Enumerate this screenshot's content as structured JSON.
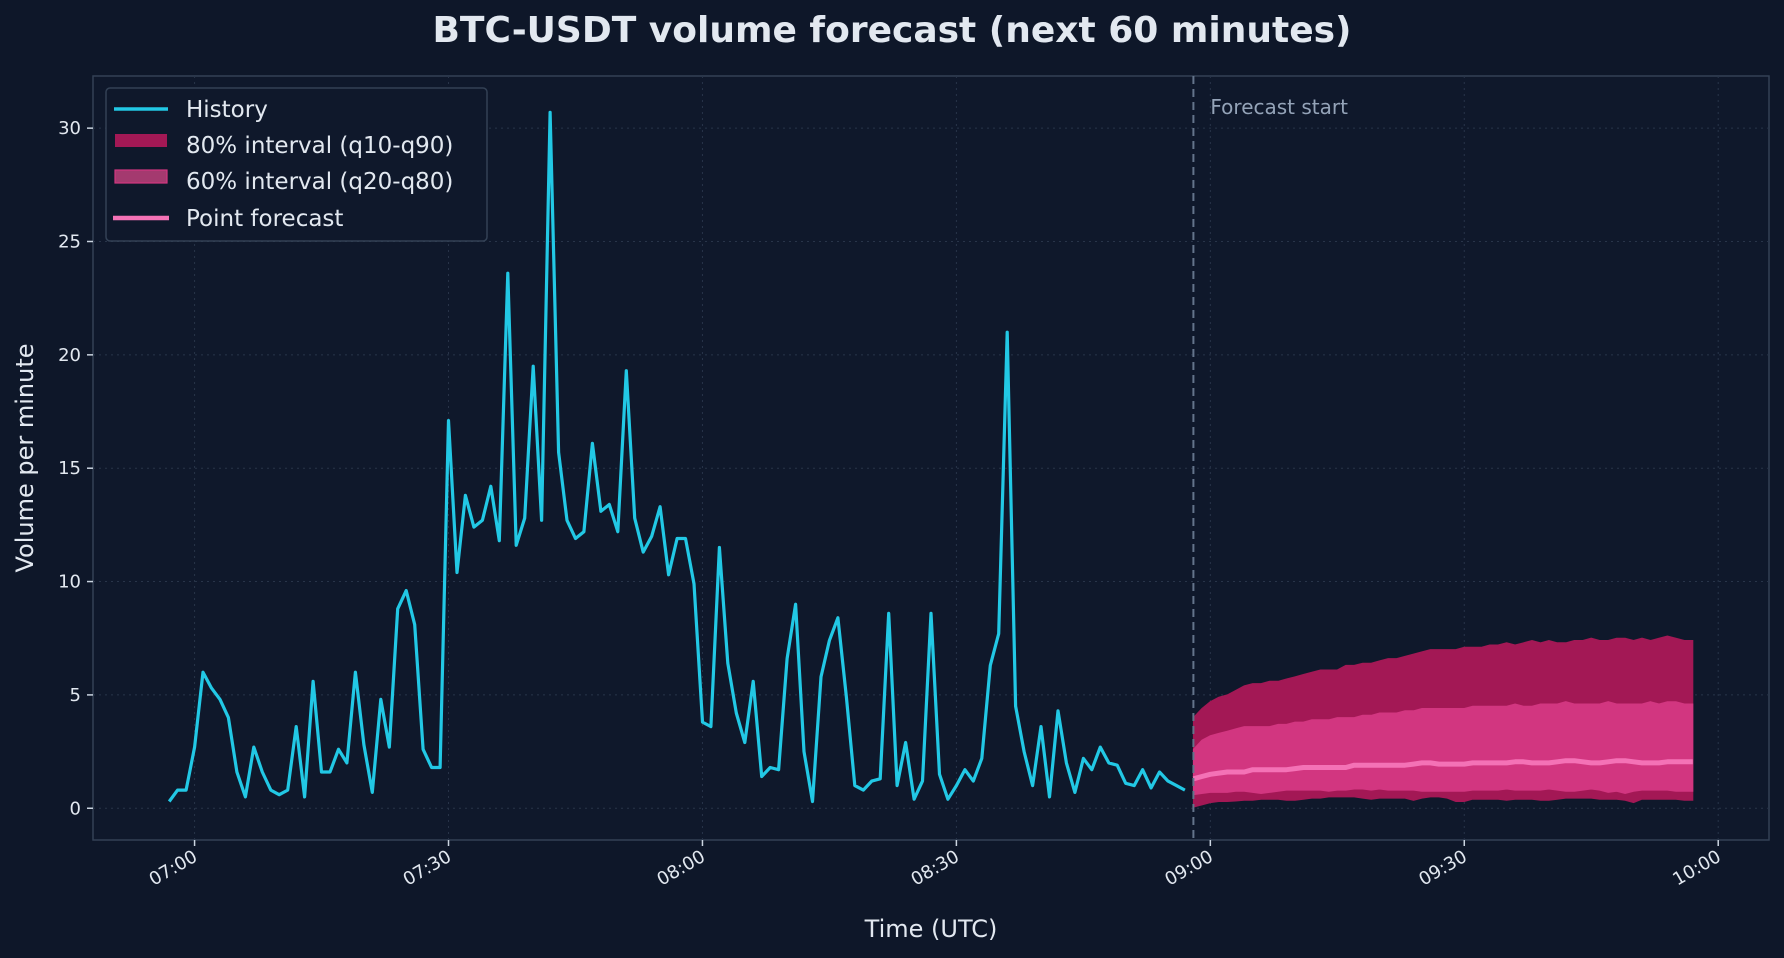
{
  "colors": {
    "background": "#0e1729",
    "axes_background": "#0f182b",
    "spine": "#334155",
    "grid": "#283449",
    "text": "#e2e8f0",
    "history": "#22c8e5",
    "interval80": "#a31855",
    "interval60": "#d23680",
    "point": "#f472b6",
    "forecast_line": "#64748b",
    "annotation": "#94a3b8"
  },
  "chart_data": {
    "type": "line",
    "title": "BTC-USDT volume forecast (next 60 minutes)",
    "xlabel": "Time (UTC)",
    "ylabel": "Volume per minute",
    "xlim": [
      "06:48",
      "10:06"
    ],
    "ylim": [
      -1.4,
      32.3
    ],
    "x_ticks": [
      "07:00",
      "07:30",
      "08:00",
      "08:30",
      "09:00",
      "09:30",
      "10:00"
    ],
    "y_ticks": [
      0,
      5,
      10,
      15,
      20,
      25,
      30
    ],
    "grid": true,
    "legend": {
      "placement": "upper-left",
      "entries": [
        "History",
        "80% interval (q10-q90)",
        "60% interval (q20-q80)",
        "Point forecast"
      ]
    },
    "annotation": {
      "text": "Forecast start",
      "x": "08:58"
    },
    "history": {
      "name": "History",
      "x": [
        "06:57",
        "06:58",
        "06:59",
        "07:00",
        "07:01",
        "07:02",
        "07:03",
        "07:04",
        "07:05",
        "07:06",
        "07:07",
        "07:08",
        "07:09",
        "07:10",
        "07:11",
        "07:12",
        "07:13",
        "07:14",
        "07:15",
        "07:16",
        "07:17",
        "07:18",
        "07:19",
        "07:20",
        "07:21",
        "07:22",
        "07:23",
        "07:24",
        "07:25",
        "07:26",
        "07:27",
        "07:28",
        "07:29",
        "07:30",
        "07:31",
        "07:32",
        "07:33",
        "07:34",
        "07:35",
        "07:36",
        "07:37",
        "07:38",
        "07:39",
        "07:40",
        "07:41",
        "07:42",
        "07:43",
        "07:44",
        "07:45",
        "07:46",
        "07:47",
        "07:48",
        "07:49",
        "07:50",
        "07:51",
        "07:52",
        "07:53",
        "07:54",
        "07:55",
        "07:56",
        "07:57",
        "07:58",
        "07:59",
        "08:00",
        "08:01",
        "08:02",
        "08:03",
        "08:04",
        "08:05",
        "08:06",
        "08:07",
        "08:08",
        "08:09",
        "08:10",
        "08:11",
        "08:12",
        "08:13",
        "08:14",
        "08:15",
        "08:16",
        "08:17",
        "08:18",
        "08:19",
        "08:20",
        "08:21",
        "08:22",
        "08:23",
        "08:24",
        "08:25",
        "08:26",
        "08:27",
        "08:28",
        "08:29",
        "08:30",
        "08:31",
        "08:32",
        "08:33",
        "08:34",
        "08:35",
        "08:36",
        "08:37",
        "08:38",
        "08:39",
        "08:40",
        "08:41",
        "08:42",
        "08:43",
        "08:44",
        "08:45",
        "08:46",
        "08:47",
        "08:48",
        "08:49",
        "08:50",
        "08:51",
        "08:52",
        "08:53",
        "08:54",
        "08:55",
        "08:56",
        "08:57"
      ],
      "y": [
        0.3,
        0.8,
        0.8,
        2.7,
        6.0,
        5.3,
        4.8,
        4.0,
        1.6,
        0.5,
        2.7,
        1.6,
        0.8,
        0.6,
        0.8,
        3.6,
        0.5,
        5.6,
        1.6,
        1.6,
        2.6,
        2.0,
        6.0,
        2.8,
        0.7,
        4.8,
        2.7,
        8.8,
        9.6,
        8.1,
        2.6,
        1.8,
        1.8,
        17.1,
        10.4,
        13.8,
        12.4,
        12.7,
        14.2,
        11.8,
        23.6,
        11.6,
        12.8,
        19.5,
        12.7,
        30.7,
        15.7,
        12.7,
        11.9,
        12.2,
        16.1,
        13.1,
        13.4,
        12.2,
        19.3,
        12.8,
        11.3,
        12.0,
        13.3,
        10.3,
        11.9,
        11.9,
        9.9,
        3.8,
        3.6,
        11.5,
        6.4,
        4.2,
        2.9,
        5.6,
        1.4,
        1.8,
        1.7,
        6.6,
        9.0,
        2.5,
        0.3,
        5.8,
        7.4,
        8.4,
        4.9,
        1.0,
        0.8,
        1.2,
        1.3,
        8.6,
        1.0,
        2.9,
        0.4,
        1.2,
        8.6,
        1.5,
        0.4,
        1.0,
        1.7,
        1.2,
        2.2,
        6.3,
        7.7,
        21.0,
        4.5,
        2.5,
        1.0,
        3.6,
        0.5,
        4.3,
        2.0,
        0.7,
        2.2,
        1.7,
        2.7,
        2.0,
        1.9,
        1.1,
        1.0,
        1.7,
        0.9,
        1.6,
        1.2,
        1.0,
        0.8
      ]
    },
    "forecast": {
      "x": [
        "08:58",
        "08:59",
        "09:00",
        "09:01",
        "09:02",
        "09:03",
        "09:04",
        "09:05",
        "09:06",
        "09:07",
        "09:08",
        "09:09",
        "09:10",
        "09:11",
        "09:12",
        "09:13",
        "09:14",
        "09:15",
        "09:16",
        "09:17",
        "09:18",
        "09:19",
        "09:20",
        "09:21",
        "09:22",
        "09:23",
        "09:24",
        "09:25",
        "09:26",
        "09:27",
        "09:28",
        "09:29",
        "09:30",
        "09:31",
        "09:32",
        "09:33",
        "09:34",
        "09:35",
        "09:36",
        "09:37",
        "09:38",
        "09:39",
        "09:40",
        "09:41",
        "09:42",
        "09:43",
        "09:44",
        "09:45",
        "09:46",
        "09:47",
        "09:48",
        "09:49",
        "09:50",
        "09:51",
        "09:52",
        "09:53",
        "09:54",
        "09:55",
        "09:56",
        "09:57"
      ],
      "q10": [
        0.05,
        0.15,
        0.25,
        0.3,
        0.3,
        0.32,
        0.35,
        0.35,
        0.4,
        0.4,
        0.4,
        0.35,
        0.35,
        0.4,
        0.45,
        0.45,
        0.5,
        0.5,
        0.5,
        0.5,
        0.45,
        0.4,
        0.45,
        0.45,
        0.45,
        0.45,
        0.35,
        0.45,
        0.5,
        0.5,
        0.45,
        0.3,
        0.3,
        0.4,
        0.4,
        0.4,
        0.4,
        0.35,
        0.4,
        0.4,
        0.4,
        0.35,
        0.35,
        0.4,
        0.45,
        0.45,
        0.45,
        0.45,
        0.4,
        0.4,
        0.4,
        0.35,
        0.25,
        0.4,
        0.4,
        0.4,
        0.4,
        0.4,
        0.35,
        0.35
      ],
      "q20": [
        0.6,
        0.65,
        0.7,
        0.7,
        0.7,
        0.75,
        0.75,
        0.7,
        0.65,
        0.7,
        0.75,
        0.8,
        0.8,
        0.8,
        0.8,
        0.8,
        0.75,
        0.8,
        0.8,
        0.85,
        0.85,
        0.8,
        0.85,
        0.8,
        0.8,
        0.8,
        0.8,
        0.75,
        0.75,
        0.75,
        0.75,
        0.75,
        0.75,
        0.8,
        0.8,
        0.8,
        0.8,
        0.85,
        0.8,
        0.8,
        0.8,
        0.8,
        0.85,
        0.8,
        0.75,
        0.75,
        0.8,
        0.85,
        0.8,
        0.7,
        0.75,
        0.65,
        0.75,
        0.8,
        0.8,
        0.8,
        0.8,
        0.75,
        0.75,
        0.75
      ],
      "median": [
        1.3,
        1.4,
        1.5,
        1.55,
        1.6,
        1.6,
        1.6,
        1.7,
        1.7,
        1.7,
        1.7,
        1.7,
        1.75,
        1.8,
        1.8,
        1.8,
        1.8,
        1.8,
        1.8,
        1.9,
        1.9,
        1.9,
        1.9,
        1.9,
        1.9,
        1.9,
        1.95,
        2.0,
        2.0,
        1.95,
        1.95,
        1.95,
        1.95,
        2.0,
        2.0,
        2.0,
        2.0,
        2.0,
        2.05,
        2.05,
        2.0,
        2.0,
        2.0,
        2.05,
        2.1,
        2.1,
        2.05,
        2.0,
        2.0,
        2.05,
        2.1,
        2.1,
        2.05,
        2.0,
        2.0,
        2.0,
        2.05,
        2.05,
        2.05,
        2.05
      ],
      "q80": [
        2.6,
        3.0,
        3.2,
        3.3,
        3.4,
        3.5,
        3.6,
        3.6,
        3.6,
        3.6,
        3.7,
        3.7,
        3.8,
        3.8,
        3.9,
        3.9,
        3.9,
        4.0,
        4.0,
        4.0,
        4.1,
        4.1,
        4.2,
        4.2,
        4.2,
        4.3,
        4.3,
        4.4,
        4.4,
        4.4,
        4.4,
        4.4,
        4.4,
        4.5,
        4.5,
        4.5,
        4.5,
        4.5,
        4.6,
        4.5,
        4.5,
        4.6,
        4.6,
        4.6,
        4.7,
        4.6,
        4.6,
        4.6,
        4.6,
        4.7,
        4.6,
        4.6,
        4.6,
        4.6,
        4.7,
        4.6,
        4.7,
        4.7,
        4.6,
        4.6
      ],
      "q90": [
        4.0,
        4.4,
        4.7,
        4.9,
        5.0,
        5.2,
        5.4,
        5.5,
        5.5,
        5.6,
        5.6,
        5.7,
        5.8,
        5.9,
        6.0,
        6.1,
        6.1,
        6.1,
        6.3,
        6.3,
        6.4,
        6.4,
        6.5,
        6.6,
        6.6,
        6.7,
        6.8,
        6.9,
        7.0,
        7.0,
        7.0,
        7.0,
        7.1,
        7.1,
        7.1,
        7.2,
        7.2,
        7.3,
        7.2,
        7.3,
        7.4,
        7.3,
        7.4,
        7.3,
        7.3,
        7.4,
        7.4,
        7.5,
        7.4,
        7.4,
        7.5,
        7.5,
        7.4,
        7.5,
        7.4,
        7.5,
        7.6,
        7.5,
        7.4,
        7.4
      ]
    }
  }
}
